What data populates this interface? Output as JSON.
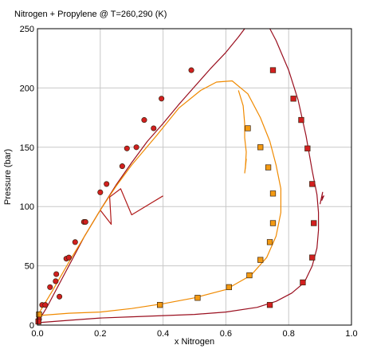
{
  "chart_data": {
    "type": "scatter",
    "title": "Nitrogen + Propylene @ T=260,290 (K)",
    "xlabel": "x Nitrogen",
    "ylabel": "Pressure (bar)",
    "xlim": [
      0,
      1
    ],
    "ylim": [
      0,
      250
    ],
    "xticks": [
      "0.0",
      "0.2",
      "0.4",
      "0.6",
      "0.8",
      "1.0"
    ],
    "yticks": [
      "0",
      "50",
      "100",
      "150",
      "200",
      "250"
    ],
    "grid": true,
    "colors": {
      "dark_red": "#9a0f1f",
      "orange": "#f08a00",
      "marker_dark": "#d21f1f",
      "marker_orange": "#f39a12",
      "marker_edge": "#3a2410",
      "grid": "#c8c8c8"
    },
    "series": [
      {
        "kind": "points",
        "marker": "circle",
        "color": "#d21f1f",
        "points": [
          [
            0.005,
            5
          ],
          [
            0.015,
            17
          ],
          [
            0.025,
            17
          ],
          [
            0.04,
            32
          ],
          [
            0.058,
            37
          ],
          [
            0.06,
            43
          ],
          [
            0.07,
            24
          ],
          [
            0.092,
            56
          ],
          [
            0.1,
            57
          ],
          [
            0.12,
            70
          ],
          [
            0.148,
            87
          ],
          [
            0.153,
            87
          ],
          [
            0.2,
            112
          ],
          [
            0.22,
            119
          ],
          [
            0.27,
            134
          ],
          [
            0.285,
            149
          ],
          [
            0.315,
            150
          ],
          [
            0.34,
            173
          ],
          [
            0.37,
            166
          ],
          [
            0.395,
            191
          ],
          [
            0.49,
            215
          ]
        ]
      },
      {
        "kind": "points",
        "marker": "square",
        "color": "#d21f1f",
        "points": [
          [
            0.003,
            3
          ],
          [
            0.74,
            17
          ],
          [
            0.845,
            36
          ],
          [
            0.875,
            57
          ],
          [
            0.88,
            86
          ],
          [
            0.875,
            119
          ],
          [
            0.86,
            149
          ],
          [
            0.84,
            173
          ],
          [
            0.815,
            191
          ],
          [
            0.75,
            215
          ]
        ]
      },
      {
        "kind": "points",
        "marker": "square",
        "color": "#f39a12",
        "points": [
          [
            0.005,
            9
          ],
          [
            0.39,
            17
          ],
          [
            0.51,
            23
          ],
          [
            0.61,
            32
          ],
          [
            0.675,
            42
          ],
          [
            0.71,
            55
          ],
          [
            0.74,
            70
          ],
          [
            0.75,
            86
          ],
          [
            0.75,
            111
          ],
          [
            0.735,
            133
          ],
          [
            0.71,
            150
          ],
          [
            0.67,
            166
          ]
        ]
      },
      {
        "kind": "curve",
        "color": "#9a0f1f",
        "points": [
          [
            0,
            2
          ],
          [
            0.1,
            4
          ],
          [
            0.2,
            6
          ],
          [
            0.3,
            7
          ],
          [
            0.4,
            8
          ],
          [
            0.5,
            9
          ],
          [
            0.6,
            11
          ],
          [
            0.7,
            15
          ],
          [
            0.76,
            20
          ],
          [
            0.81,
            27
          ],
          [
            0.85,
            36
          ],
          [
            0.875,
            50
          ],
          [
            0.89,
            65
          ],
          [
            0.895,
            80
          ],
          [
            0.895,
            95
          ],
          [
            0.89,
            110
          ],
          [
            0.875,
            130
          ],
          [
            0.855,
            160
          ],
          [
            0.83,
            190
          ],
          [
            0.8,
            215
          ],
          [
            0.76,
            240
          ],
          [
            0.74,
            250
          ]
        ]
      },
      {
        "kind": "curve",
        "color": "#9a0f1f",
        "points": [
          [
            0,
            2
          ],
          [
            0.03,
            15
          ],
          [
            0.06,
            30
          ],
          [
            0.1,
            50
          ],
          [
            0.15,
            75
          ],
          [
            0.2,
            97
          ],
          [
            0.25,
            118
          ],
          [
            0.3,
            137
          ],
          [
            0.35,
            155
          ],
          [
            0.4,
            170
          ],
          [
            0.45,
            186
          ],
          [
            0.5,
            201
          ],
          [
            0.55,
            216
          ],
          [
            0.6,
            230
          ],
          [
            0.64,
            243
          ],
          [
            0.66,
            250
          ]
        ]
      },
      {
        "kind": "curve",
        "color": "#9a0f1f",
        "points": [
          [
            0.9,
            102
          ],
          [
            0.908,
            112
          ],
          [
            0.905,
            107
          ],
          [
            0.912,
            109
          ],
          [
            0.905,
            105
          ]
        ]
      },
      {
        "kind": "curve",
        "color": "#b01a1a",
        "points": [
          [
            0.2,
            97
          ],
          [
            0.235,
            85
          ],
          [
            0.23,
            108
          ],
          [
            0.265,
            115
          ],
          [
            0.3,
            93
          ],
          [
            0.4,
            109
          ]
        ]
      },
      {
        "kind": "curve",
        "color": "#f08a00",
        "points": [
          [
            0,
            8
          ],
          [
            0.1,
            10
          ],
          [
            0.2,
            11
          ],
          [
            0.3,
            14
          ],
          [
            0.4,
            18
          ],
          [
            0.5,
            23
          ],
          [
            0.6,
            30
          ],
          [
            0.68,
            42
          ],
          [
            0.73,
            57
          ],
          [
            0.76,
            75
          ],
          [
            0.775,
            95
          ],
          [
            0.775,
            115
          ],
          [
            0.76,
            135
          ],
          [
            0.74,
            155
          ],
          [
            0.71,
            175
          ],
          [
            0.67,
            195
          ],
          [
            0.62,
            206
          ],
          [
            0.57,
            205
          ],
          [
            0.52,
            198
          ],
          [
            0.45,
            183
          ],
          [
            0.38,
            160
          ],
          [
            0.3,
            135
          ],
          [
            0.25,
            117
          ],
          [
            0.2,
            97
          ],
          [
            0.15,
            75
          ],
          [
            0.1,
            53
          ],
          [
            0.05,
            30
          ],
          [
            0,
            8
          ]
        ]
      },
      {
        "kind": "curve",
        "color": "#f08a00",
        "points": [
          [
            0.64,
            198
          ],
          [
            0.655,
            185
          ],
          [
            0.66,
            170
          ],
          [
            0.66,
            158
          ],
          [
            0.665,
            146
          ],
          [
            0.662,
            132
          ],
          [
            0.665,
            140
          ],
          [
            0.66,
            128
          ]
        ]
      }
    ]
  }
}
